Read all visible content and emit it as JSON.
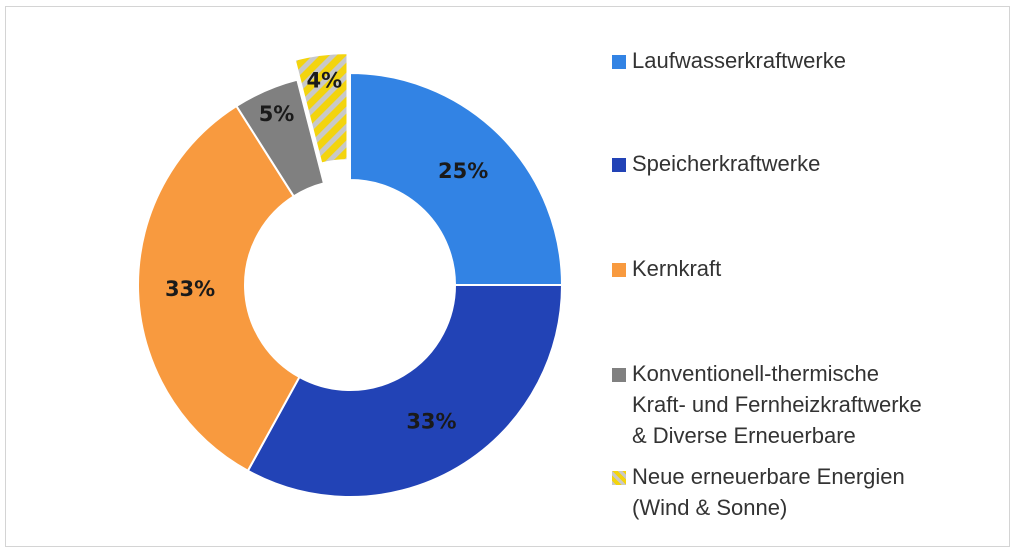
{
  "chart_data": {
    "type": "donut",
    "categories": [
      "Laufwasserkraftwerke",
      "Speicherkraftwerke",
      "Kernkraft",
      "Konventionell-thermische\nKraft- und Fernheizkraftwerke\n& Diverse Erneuerbare",
      "Neue erneuerbare Energien\n(Wind & Sonne)"
    ],
    "values": [
      25,
      33,
      33,
      5,
      4
    ],
    "value_labels": [
      "25%",
      "33%",
      "33%",
      "5%",
      "4%"
    ],
    "colors": [
      "#3283e4",
      "#2243b6",
      "#f89a3f",
      "#808080",
      "#f3d40e"
    ],
    "hatched": [
      false,
      false,
      false,
      false,
      true
    ],
    "exploded": [
      false,
      false,
      false,
      false,
      true
    ],
    "legend": "right"
  }
}
